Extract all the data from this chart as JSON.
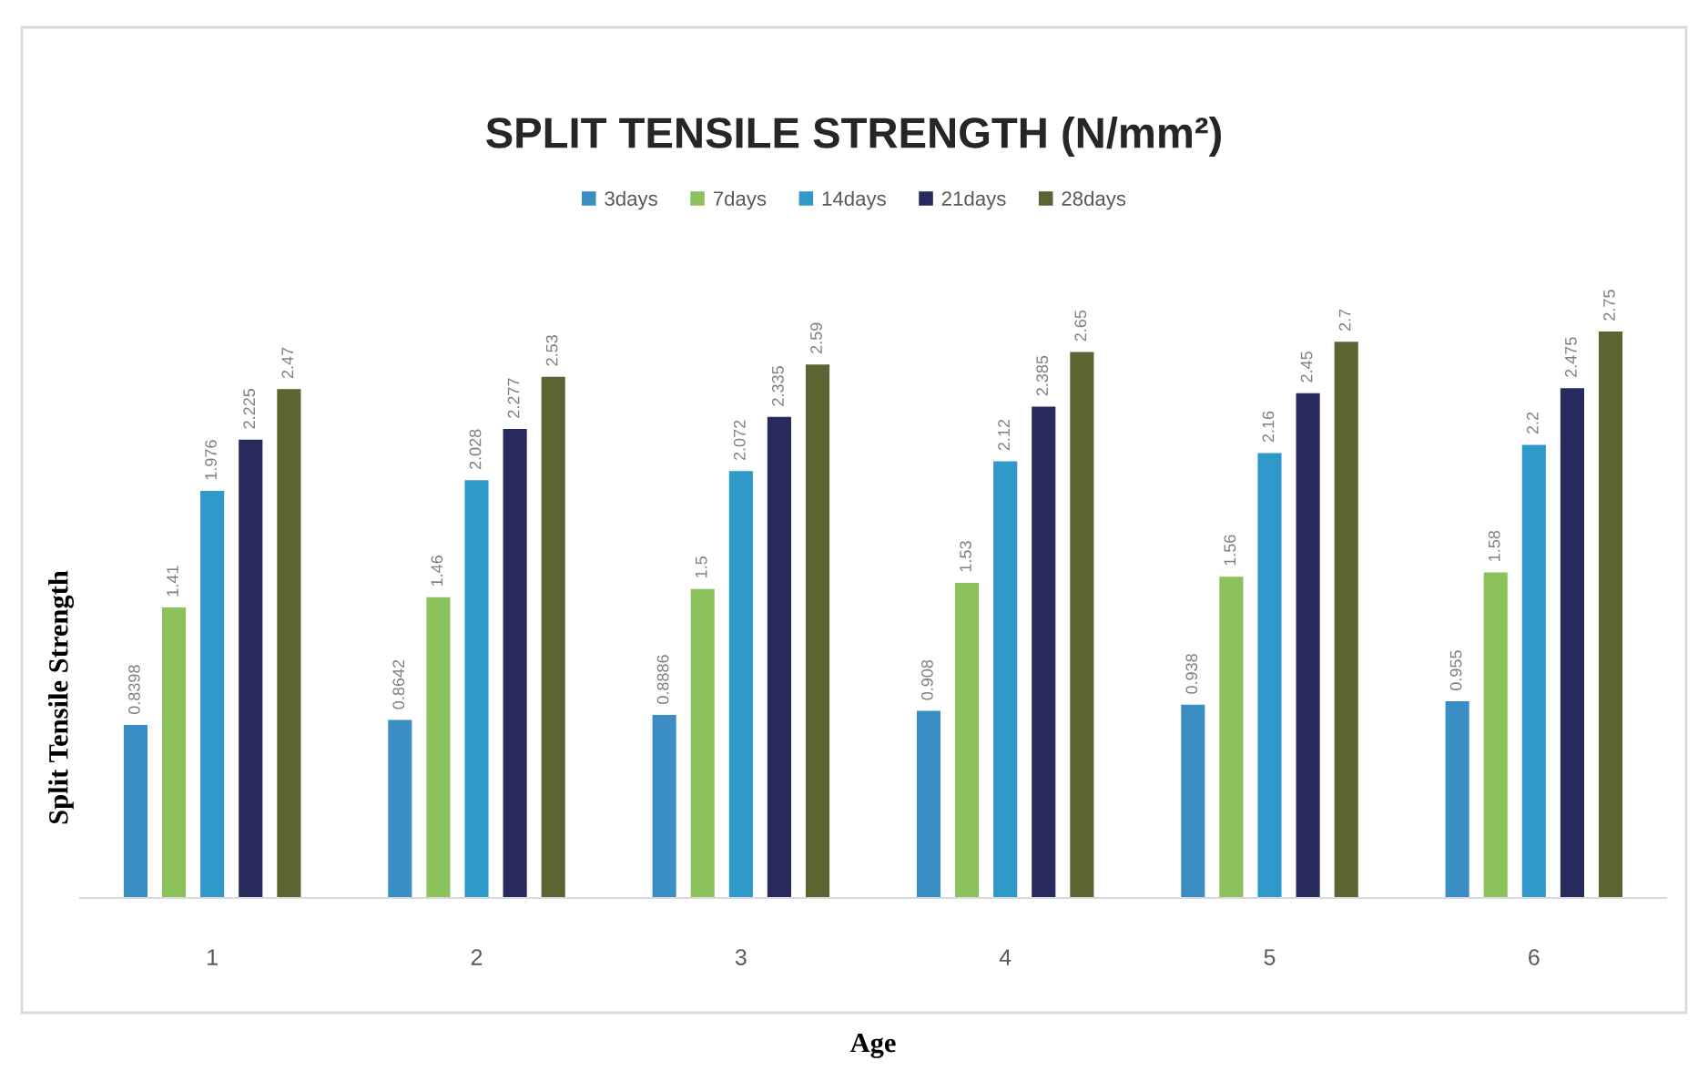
{
  "chart_data": {
    "type": "bar",
    "title": "SPLIT TENSILE STRENGTH (N/mm²)",
    "xlabel": "Age",
    "ylabel": "Split Tensile Strength",
    "categories": [
      "1",
      "2",
      "3",
      "4",
      "5",
      "6"
    ],
    "series": [
      {
        "name": "3days",
        "color": "#3b8ec4",
        "values": [
          0.8398,
          0.8642,
          0.8886,
          0.908,
          0.938,
          0.955
        ]
      },
      {
        "name": "7days",
        "color": "#8cc25c",
        "values": [
          1.41,
          1.46,
          1.5,
          1.53,
          1.56,
          1.58
        ]
      },
      {
        "name": "14days",
        "color": "#2f99c9",
        "values": [
          1.976,
          2.028,
          2.072,
          2.12,
          2.16,
          2.2
        ]
      },
      {
        "name": "21days",
        "color": "#262a5c",
        "values": [
          2.225,
          2.277,
          2.335,
          2.385,
          2.45,
          2.475
        ]
      },
      {
        "name": "28days",
        "color": "#5d6432",
        "values": [
          2.47,
          2.53,
          2.59,
          2.65,
          2.7,
          2.75
        ]
      }
    ],
    "data_labels": true,
    "legend": "top",
    "tick_labels": "x"
  }
}
